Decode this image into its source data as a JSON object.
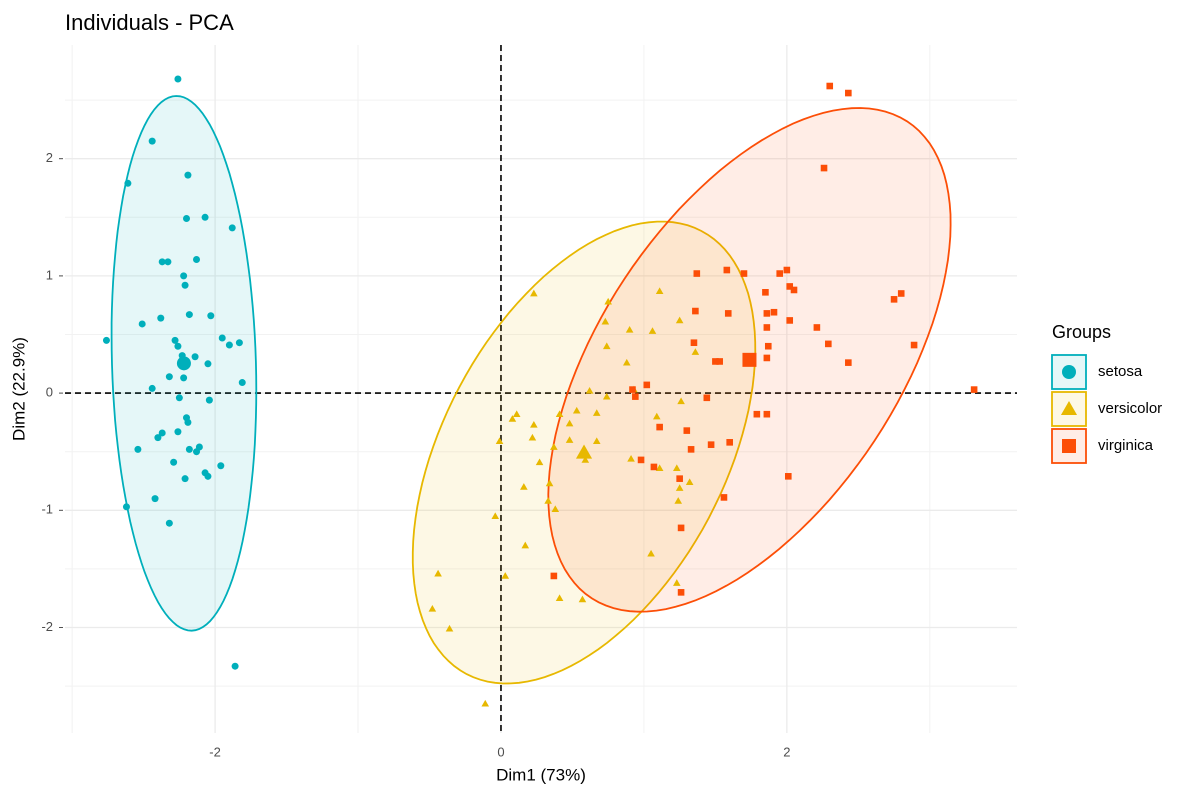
{
  "chart_data": {
    "type": "scatter",
    "title": "Individuals - PCA",
    "x_label": "Dim1 (73%)",
    "y_label": "Dim2 (22.9%)",
    "legend_title": "Groups",
    "legend_position": "right",
    "grid": true,
    "reference_lines": true,
    "ellipses": true,
    "xlim": [
      -3.05,
      3.61
    ],
    "ylim": [
      -2.9,
      2.97
    ],
    "xticks": [
      -2,
      0,
      2
    ],
    "yticks": [
      -2,
      -1,
      0,
      1,
      2
    ],
    "series": [
      {
        "name": "setosa",
        "color": "#00AFBB",
        "marker": "circle",
        "x": [
          -2.26,
          -2.44,
          -2.61,
          -2.19,
          -2.2,
          -2.07,
          -1.88,
          -2.37,
          -2.33,
          -2.13,
          -2.22,
          -2.21,
          -2.51,
          -2.38,
          -2.18,
          -2.03,
          -2.28,
          -2.26,
          -1.95,
          -1.9,
          -1.83,
          -2.76,
          -2.23,
          -2.14,
          -2.05,
          -2.23,
          -2.32,
          -2.22,
          -2.44,
          -1.81,
          -2.25,
          -2.04,
          -2.2,
          -2.19,
          -2.37,
          -2.4,
          -2.26,
          -2.54,
          -2.11,
          -2.18,
          -2.13,
          -2.29,
          -1.96,
          -2.07,
          -2.05,
          -2.21,
          -2.42,
          -2.62,
          -2.32,
          -1.86
        ],
        "y": [
          2.68,
          2.15,
          1.79,
          1.86,
          1.49,
          1.5,
          1.41,
          1.12,
          1.12,
          1.14,
          1.0,
          0.92,
          0.59,
          0.64,
          0.67,
          0.66,
          0.45,
          0.4,
          0.47,
          0.41,
          0.43,
          0.45,
          0.32,
          0.31,
          0.25,
          0.24,
          0.14,
          0.13,
          0.04,
          0.09,
          -0.04,
          -0.06,
          -0.21,
          -0.25,
          -0.34,
          -0.38,
          -0.33,
          -0.48,
          -0.46,
          -0.48,
          -0.5,
          -0.59,
          -0.62,
          -0.68,
          -0.71,
          -0.73,
          -0.9,
          -0.97,
          -1.11,
          -2.33
        ]
      },
      {
        "name": "versicolor",
        "color": "#E7B800",
        "marker": "triangle",
        "x": [
          0.23,
          0.75,
          1.11,
          0.73,
          0.9,
          1.06,
          1.25,
          0.74,
          1.36,
          0.88,
          0.11,
          0.08,
          0.23,
          0.41,
          0.53,
          0.62,
          0.74,
          0.67,
          0.93,
          1.09,
          1.26,
          0.48,
          0.22,
          0.48,
          0.37,
          0.67,
          0.27,
          0.59,
          0.91,
          1.11,
          1.23,
          1.32,
          1.25,
          0.16,
          0.34,
          0.33,
          0.38,
          -0.01,
          -0.04,
          1.24,
          1.05,
          0.17,
          0.03,
          -0.44,
          -0.48,
          -0.36,
          -0.11,
          0.41,
          0.57,
          1.23
        ],
        "y": [
          0.85,
          0.78,
          0.87,
          0.61,
          0.54,
          0.53,
          0.62,
          0.4,
          0.35,
          0.26,
          -0.18,
          -0.22,
          -0.27,
          -0.18,
          -0.15,
          0.02,
          -0.03,
          -0.17,
          0.03,
          -0.2,
          -0.07,
          -0.26,
          -0.38,
          -0.4,
          -0.46,
          -0.41,
          -0.59,
          -0.57,
          -0.56,
          -0.64,
          -0.64,
          -0.76,
          -0.81,
          -0.8,
          -0.77,
          -0.92,
          -0.99,
          -0.41,
          -1.05,
          -0.92,
          -1.37,
          -1.3,
          -1.56,
          -1.54,
          -1.84,
          -2.01,
          -2.65,
          -1.75,
          -1.76,
          -1.62
        ]
      },
      {
        "name": "virginica",
        "color": "#FC4E07",
        "marker": "square",
        "x": [
          2.3,
          2.43,
          2.26,
          1.37,
          1.58,
          1.7,
          1.95,
          2.0,
          2.02,
          2.05,
          1.85,
          1.36,
          1.59,
          1.86,
          1.91,
          2.02,
          2.21,
          2.75,
          2.8,
          1.86,
          1.35,
          1.5,
          1.53,
          1.86,
          1.87,
          2.29,
          2.43,
          2.89,
          3.31,
          0.92,
          1.02,
          0.94,
          1.44,
          1.79,
          1.86,
          1.11,
          1.3,
          1.47,
          1.6,
          0.98,
          1.07,
          1.33,
          1.25,
          2.01,
          1.56,
          1.26,
          0.37,
          1.26
        ],
        "y": [
          2.62,
          2.56,
          1.92,
          1.02,
          1.05,
          1.02,
          1.02,
          1.05,
          0.91,
          0.88,
          0.86,
          0.7,
          0.68,
          0.68,
          0.69,
          0.62,
          0.56,
          0.8,
          0.85,
          0.56,
          0.43,
          0.27,
          0.27,
          0.3,
          0.4,
          0.42,
          0.26,
          0.41,
          0.03,
          0.03,
          0.07,
          -0.03,
          -0.04,
          -0.18,
          -0.18,
          -0.29,
          -0.32,
          -0.44,
          -0.42,
          -0.57,
          -0.63,
          -0.48,
          -0.73,
          -0.71,
          -0.89,
          -1.15,
          -1.56,
          -1.7
        ]
      }
    ]
  }
}
